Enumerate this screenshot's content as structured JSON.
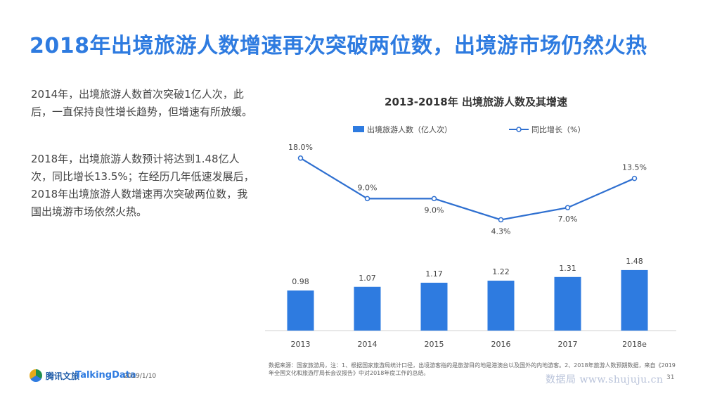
{
  "title": "2018年出境旅游人数增速再次突破两位数，出境游市场仍然火热",
  "paragraphs": [
    "2014年，出境旅游人数首次突破1亿人次，此后，一直保持良性增长趋势，但增速有所放缓。",
    "2018年，出境旅游人数预计将达到1.48亿人次，同比增长13.5%；在经历几年低速发展后，2018年出境旅游人数增速再次突破两位数，我国出境游市场依然火热。"
  ],
  "chart_data": {
    "type": "bar+line",
    "title": "2013-2018年 出境旅游人数及其增速",
    "categories": [
      "2013",
      "2014",
      "2015",
      "2016",
      "2017",
      "2018e"
    ],
    "series": [
      {
        "name": "出境旅游人数（亿人次）",
        "type": "bar",
        "values": [
          0.98,
          1.07,
          1.17,
          1.22,
          1.31,
          1.48
        ],
        "labels": [
          "0.98",
          "1.07",
          "1.17",
          "1.22",
          "1.31",
          "1.48"
        ]
      },
      {
        "name": "同比增长（%）",
        "type": "line",
        "values": [
          18.0,
          9.0,
          9.0,
          4.3,
          7.0,
          13.5
        ],
        "labels": [
          "18.0%",
          "9.0%",
          "9.0%",
          "4.3%",
          "7.0%",
          "13.5%"
        ]
      }
    ],
    "legend_position": "top-center",
    "grid": false,
    "colors": {
      "bar": "#2e7be0",
      "line": "#2e6fd0"
    }
  },
  "footer": {
    "logo_tencent": "腾讯文旅",
    "logo_talkingdata": "TalkingData",
    "date": "2019/1/10",
    "note": "数据来源：国家旅游局，注：1、根据国家旅游局统计口径，出境游客指的是旅游目的地是港澳台以及国外的内地游客。2、2018年旅游人数预期数据，来自《2019年全国文化和旅游厅局长会议报告》中对2018年度工作的总结。",
    "page": "31",
    "watermark": "数据局 www.shujuju.cn"
  }
}
